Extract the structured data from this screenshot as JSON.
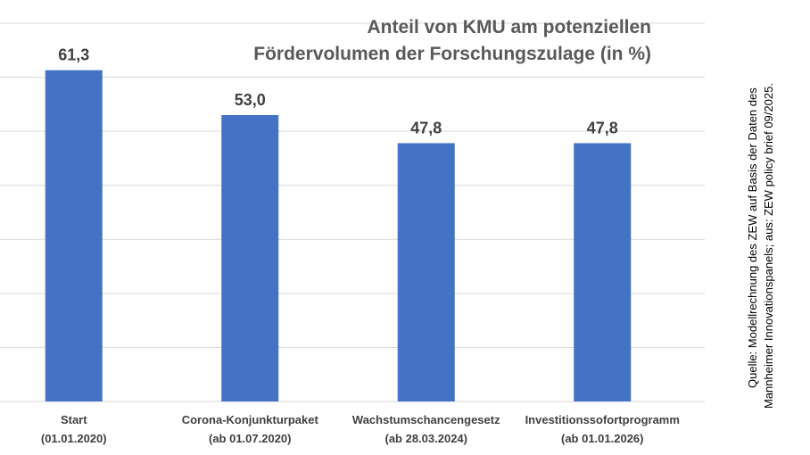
{
  "chart_data": {
    "type": "bar",
    "title_lines": [
      "Anteil von KMU am potenziellen",
      "Fördervolumen der Forschungszulage (in %)"
    ],
    "categories": [
      [
        "Start",
        "(01.01.2020)"
      ],
      [
        "Corona-Konjunkturpaket",
        "(ab 01.07.2020)"
      ],
      [
        "Wachstumschancengesetz",
        "(ab 28.03.2024)"
      ],
      [
        "Investitionssofortprogramm",
        "(ab 01.01.2026)"
      ]
    ],
    "values": [
      61.3,
      53.0,
      47.8,
      47.8
    ],
    "value_labels": [
      "61,3",
      "53,0",
      "47,8",
      "47,8"
    ],
    "ylim": [
      0,
      70
    ],
    "grid": true,
    "bar_color": "#4472C4",
    "source_lines": [
      "Quelle: Modellrechnung des ZEW auf Basis der Daten des",
      "Mannheimer Innovationspanels; aus: ZEW policy brief 09/2025."
    ]
  }
}
